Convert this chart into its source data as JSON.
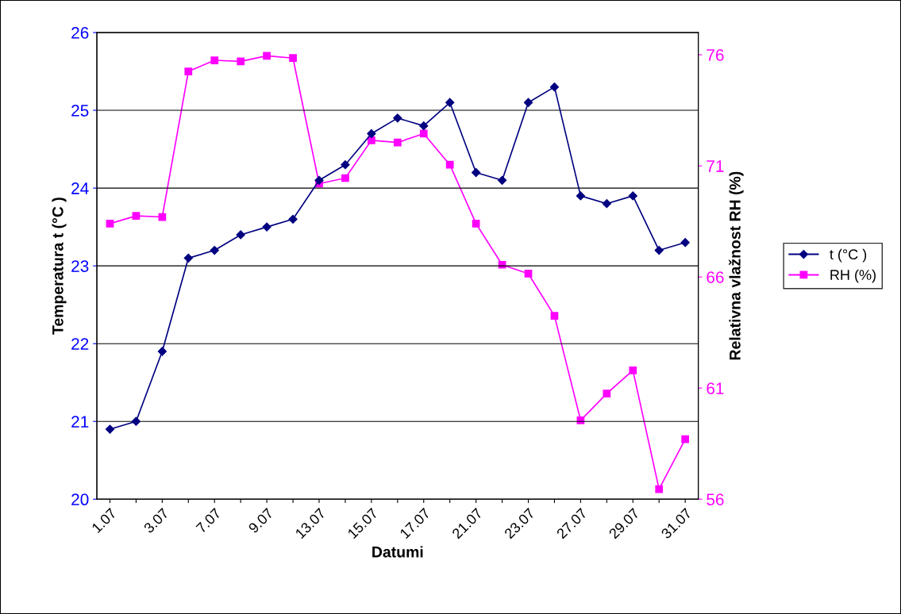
{
  "chart_data": {
    "type": "line",
    "xlabel": "Datumi",
    "ylabel": "Temperatura t (°C )",
    "y2label": "Relativna vlažnost RH (%)",
    "categories": [
      "1.07",
      null,
      "3.07",
      null,
      "7.07",
      null,
      "9.07",
      null,
      "13.07",
      null,
      "15.07",
      null,
      "17.07",
      null,
      "21.07",
      null,
      "23.07",
      null,
      "27.07",
      null,
      "29.07",
      null,
      "31.07"
    ],
    "series": [
      {
        "name": "t (°C )",
        "color": "#000080",
        "marker": "diamond",
        "values": [
          20.9,
          21.0,
          21.9,
          23.1,
          23.2,
          23.4,
          23.5,
          23.6,
          24.1,
          24.3,
          24.7,
          24.9,
          24.8,
          25.1,
          24.2,
          24.1,
          25.1,
          25.3,
          23.9,
          23.8,
          23.9,
          23.2,
          23.3
        ]
      },
      {
        "name": "RH (%)",
        "color": "#ff00ff",
        "marker": "square",
        "axis": "y2",
        "values": [
          68.4,
          68.75,
          68.7,
          75.25,
          75.75,
          75.7,
          75.95,
          75.85,
          70.2,
          70.45,
          72.15,
          72.05,
          72.45,
          71.05,
          68.4,
          66.55,
          66.15,
          64.25,
          59.55,
          60.75,
          61.8,
          56.45,
          58.7
        ]
      }
    ],
    "ylim": [
      20,
      26
    ],
    "yticks": [
      20,
      21,
      22,
      23,
      24,
      25,
      26
    ],
    "y2lim": [
      56,
      77
    ],
    "y2ticks": [
      56,
      61,
      66,
      71,
      76
    ],
    "grid": "y",
    "legend": "right"
  }
}
